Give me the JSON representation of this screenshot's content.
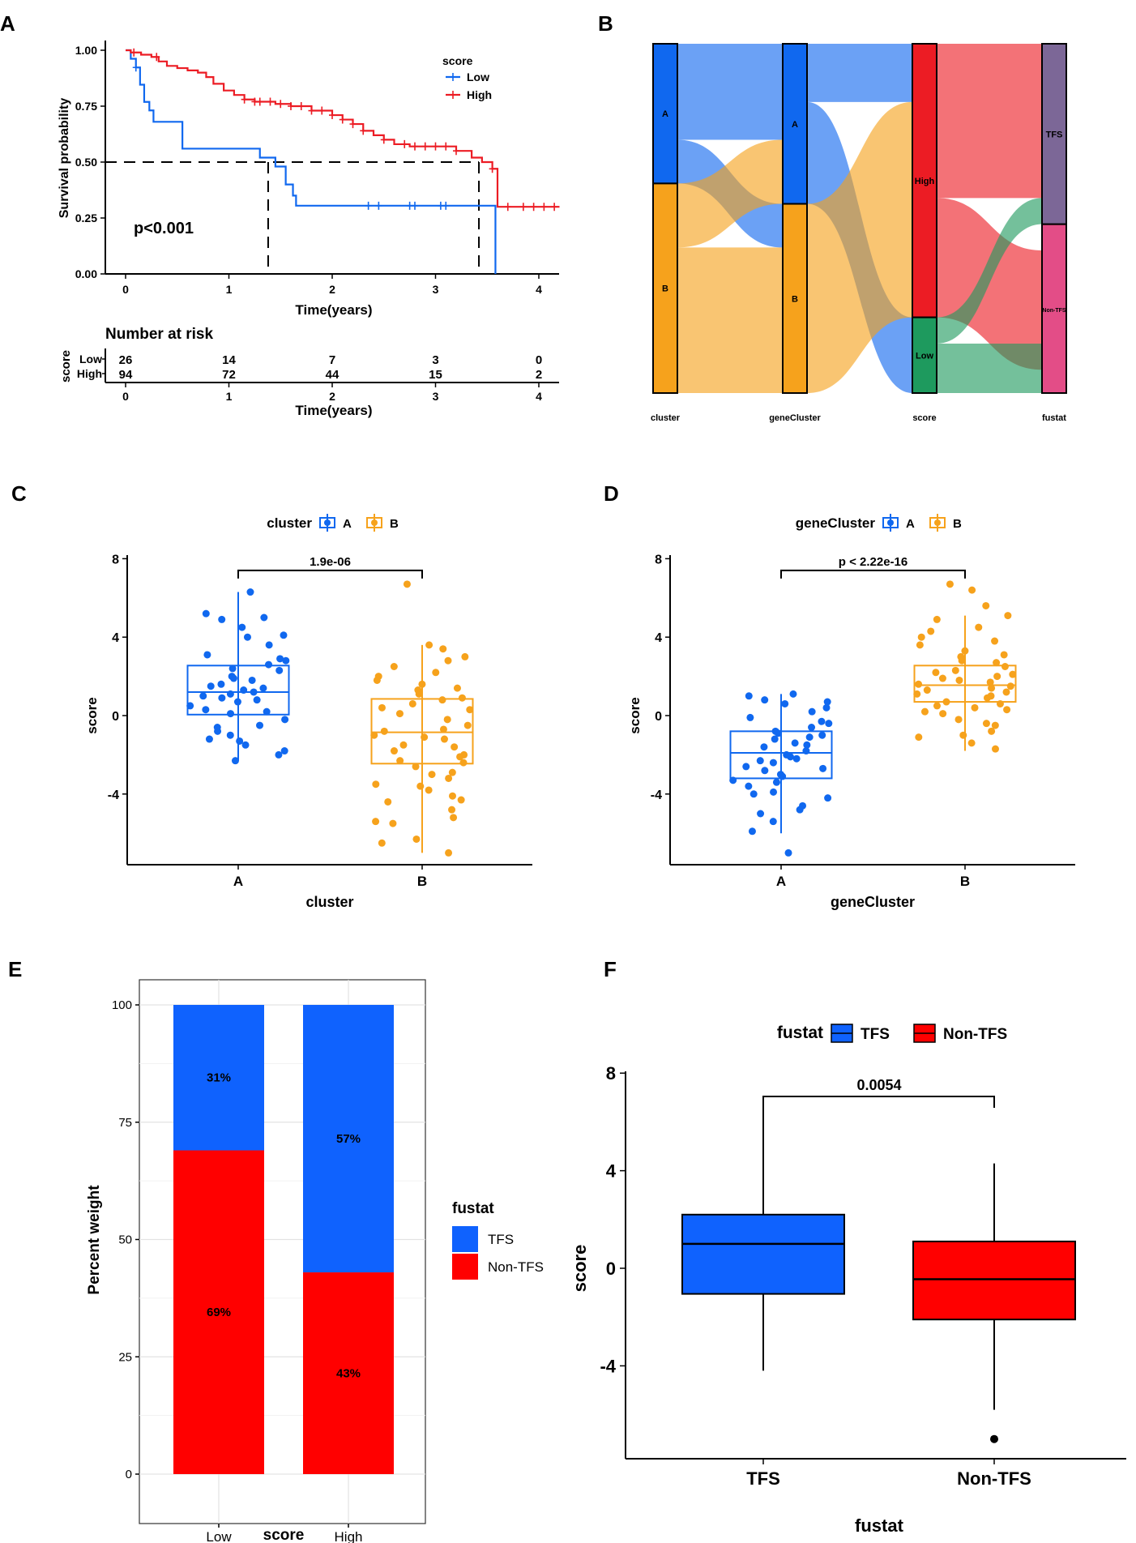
{
  "colors": {
    "blue": "#1068ef",
    "red": "#ec1c24",
    "orange": "#f6a21c",
    "green": "#1e9a5e",
    "purple": "#7c6797",
    "pink": "#e34d87",
    "fill_blue": "#0f62fe",
    "fill_red": "#ff0000",
    "lightblue": "#6aa4f7",
    "lightorange": "#fbc97a",
    "lightred": "#ff7b7b",
    "lightgreen": "#7cc9a0"
  },
  "panels": {
    "A": "A",
    "B": "B",
    "C": "C",
    "D": "D",
    "E": "E",
    "F": "F"
  },
  "chart_data": [
    {
      "id": "A",
      "type": "line",
      "ylabel": "Survival probability",
      "xlabel": "Time(years)",
      "xlim": [
        0,
        4.2
      ],
      "ylim": [
        0,
        1
      ],
      "xticks": [
        "0",
        "1",
        "2",
        "3",
        "4"
      ],
      "yticks": [
        "0.00",
        "0.25",
        "0.50",
        "0.75",
        "1.00"
      ],
      "legend_title": "score",
      "pvalue": "p<0.001",
      "series": [
        {
          "name": "Low",
          "color": "#1068ef",
          "steps": [
            [
              0,
              1
            ],
            [
              0.05,
              0.962
            ],
            [
              0.1,
              0.923
            ],
            [
              0.14,
              0.846
            ],
            [
              0.18,
              0.769
            ],
            [
              0.23,
              0.731
            ],
            [
              0.27,
              0.692
            ],
            [
              0.27,
              0.68
            ],
            [
              0.55,
              0.64
            ],
            [
              0.55,
              0.56
            ],
            [
              1.3,
              0.56
            ],
            [
              1.3,
              0.52
            ],
            [
              1.45,
              0.52
            ],
            [
              1.45,
              0.48
            ],
            [
              1.55,
              0.48
            ],
            [
              1.55,
              0.4
            ],
            [
              1.62,
              0.4
            ],
            [
              1.62,
              0.35
            ],
            [
              1.65,
              0.35
            ],
            [
              1.65,
              0.305
            ],
            [
              3.58,
              0.305
            ],
            [
              3.58,
              0
            ]
          ],
          "censor": [
            0.1,
            2.35,
            2.45,
            2.75,
            2.8,
            3.05,
            3.1
          ]
        },
        {
          "name": "High",
          "color": "#ec1c24",
          "steps": [
            [
              0,
              1
            ],
            [
              0.05,
              0.99
            ],
            [
              0.15,
              0.98
            ],
            [
              0.25,
              0.97
            ],
            [
              0.32,
              0.95
            ],
            [
              0.4,
              0.93
            ],
            [
              0.5,
              0.92
            ],
            [
              0.6,
              0.91
            ],
            [
              0.7,
              0.9
            ],
            [
              0.78,
              0.88
            ],
            [
              0.85,
              0.85
            ],
            [
              0.95,
              0.82
            ],
            [
              1.05,
              0.8
            ],
            [
              1.15,
              0.78
            ],
            [
              1.25,
              0.77
            ],
            [
              1.45,
              0.76
            ],
            [
              1.6,
              0.75
            ],
            [
              1.8,
              0.73
            ],
            [
              2.0,
              0.71
            ],
            [
              2.1,
              0.69
            ],
            [
              2.2,
              0.67
            ],
            [
              2.3,
              0.64
            ],
            [
              2.4,
              0.62
            ],
            [
              2.5,
              0.6
            ],
            [
              2.6,
              0.58
            ],
            [
              2.75,
              0.57
            ],
            [
              3.2,
              0.55
            ],
            [
              3.35,
              0.52
            ],
            [
              3.45,
              0.5
            ],
            [
              3.55,
              0.47
            ],
            [
              3.6,
              0.4
            ],
            [
              3.6,
              0.3
            ],
            [
              4.2,
              0.3
            ]
          ],
          "censor": [
            0.08,
            0.3,
            1.15,
            1.25,
            1.3,
            1.4,
            1.5,
            1.6,
            1.7,
            1.8,
            1.9,
            2.0,
            2.1,
            2.2,
            2.3,
            2.5,
            2.7,
            2.8,
            2.9,
            3.0,
            3.1,
            3.2,
            3.55,
            3.7,
            3.85,
            3.95,
            4.05,
            4.15
          ]
        }
      ],
      "medians": [
        1.38,
        3.42
      ],
      "risk_table": {
        "title": "Number at risk",
        "ylabel": "score",
        "xlabel": "Time(years)",
        "rows": [
          {
            "name": "Low",
            "values": [
              "26",
              "14",
              "7",
              "3",
              "0"
            ]
          },
          {
            "name": "High",
            "values": [
              "94",
              "72",
              "44",
              "15",
              "2"
            ]
          }
        ],
        "times": [
          "0",
          "1",
          "2",
          "3",
          "4"
        ]
      }
    },
    {
      "id": "B",
      "type": "sankey",
      "axes": [
        "cluster",
        "geneCluster",
        "score",
        "fustat"
      ],
      "stacks": [
        [
          {
            "label": "A",
            "value": 48
          },
          {
            "label": "B",
            "value": 72
          }
        ],
        [
          {
            "label": "A",
            "value": 55
          },
          {
            "label": "B",
            "value": 65
          }
        ],
        [
          {
            "label": "High",
            "value": 94
          },
          {
            "label": "Low",
            "value": 26
          }
        ],
        [
          {
            "label": "TFS",
            "value": 62
          },
          {
            "label": "Non-TFS",
            "value": 58
          }
        ]
      ]
    },
    {
      "id": "C",
      "type": "box",
      "xlabel": "cluster",
      "ylabel": "score",
      "legend_title": "cluster",
      "categories": [
        "A",
        "B"
      ],
      "ylim": [
        -7.5,
        8
      ],
      "yticks": [
        "-4",
        "0",
        "4",
        "8"
      ],
      "pvalue": "1.9e-06",
      "boxes": [
        {
          "q1": 0.05,
          "median": 1.2,
          "q3": 2.55,
          "low": -2.3,
          "high": 6.3
        },
        {
          "q1": -2.45,
          "median": -0.85,
          "q3": 0.85,
          "low": -7.0,
          "high": 3.6
        }
      ],
      "points": [
        [
          6.3,
          5.2,
          4.9,
          4.5,
          4.1,
          3.6,
          3.1,
          2.8,
          2.6,
          2.4,
          2.3,
          2.0,
          1.8,
          1.6,
          1.4,
          1.3,
          1.2,
          1.1,
          1.0,
          0.9,
          0.7,
          0.5,
          0.3,
          0.1,
          -0.2,
          -0.5,
          -0.8,
          -1.0,
          -1.2,
          -1.5,
          -1.8,
          -2.0,
          -2.3,
          5.0,
          4.0,
          2.9,
          1.9,
          1.5,
          0.8,
          0.2,
          -0.6,
          -1.3
        ],
        [
          6.7,
          3.6,
          3.4,
          3.0,
          2.5,
          2.2,
          2.0,
          1.8,
          1.6,
          1.3,
          1.1,
          0.9,
          0.6,
          0.3,
          0.1,
          -0.2,
          -0.5,
          -0.8,
          -1.0,
          -1.2,
          -1.5,
          -1.8,
          -2.0,
          -2.3,
          -2.6,
          -2.9,
          -3.2,
          -3.5,
          -3.8,
          -4.1,
          -4.4,
          -4.8,
          -5.2,
          -5.5,
          -6.3,
          -7.0,
          2.8,
          1.4,
          0.4,
          -0.7,
          -1.6,
          -2.4,
          -3.0,
          -3.6,
          -4.3,
          -5.4,
          -6.5,
          0.8,
          -1.1,
          -2.1
        ]
      ],
      "group_colors": [
        "#1068ef",
        "#f6a21c"
      ]
    },
    {
      "id": "D",
      "type": "box",
      "xlabel": "geneCluster",
      "ylabel": "score",
      "legend_title": "geneCluster",
      "categories": [
        "A",
        "B"
      ],
      "ylim": [
        -7.5,
        8
      ],
      "yticks": [
        "-4",
        "0",
        "4",
        "8"
      ],
      "pvalue": "p < 2.22e-16",
      "boxes": [
        {
          "q1": -3.2,
          "median": -1.9,
          "q3": -0.8,
          "low": -6.0,
          "high": 1.1
        },
        {
          "q1": 0.7,
          "median": 1.55,
          "q3": 2.55,
          "low": -1.8,
          "high": 5.1
        }
      ],
      "points": [
        [
          1.1,
          1.0,
          0.8,
          0.6,
          0.4,
          0.2,
          -0.1,
          -0.4,
          -0.6,
          -0.8,
          -1.0,
          -1.2,
          -1.4,
          -1.6,
          -1.8,
          -2.0,
          -2.2,
          -2.4,
          -2.6,
          -2.8,
          -3.0,
          -3.3,
          -3.6,
          -3.9,
          -4.2,
          -4.6,
          -5.0,
          -5.4,
          -5.9,
          -7.0,
          0.7,
          -0.3,
          -0.9,
          -1.5,
          -2.1,
          -2.7,
          -3.4,
          -4.0,
          -4.8,
          -1.1,
          -2.3,
          -3.1
        ],
        [
          6.7,
          6.4,
          5.6,
          5.1,
          4.9,
          4.5,
          4.0,
          3.6,
          3.3,
          3.0,
          2.8,
          2.5,
          2.3,
          2.1,
          1.9,
          1.7,
          1.5,
          1.3,
          1.1,
          0.9,
          0.7,
          0.5,
          0.3,
          0.1,
          -0.2,
          -0.5,
          -0.8,
          -1.1,
          -1.4,
          -1.7,
          4.3,
          3.8,
          2.7,
          2.2,
          1.8,
          1.4,
          1.0,
          0.6,
          0.2,
          -0.4,
          2.0,
          1.2,
          0.4,
          -1.0,
          3.1,
          1.6
        ]
      ],
      "group_colors": [
        "#1068ef",
        "#f6a21c"
      ]
    },
    {
      "id": "E",
      "type": "bar",
      "stacked": true,
      "xlabel": "score",
      "ylabel": "Percent weight",
      "categories": [
        "Low",
        "High"
      ],
      "ylim": [
        0,
        100
      ],
      "yticks": [
        "0",
        "25",
        "50",
        "75",
        "100"
      ],
      "legend_title": "fustat",
      "series": [
        {
          "name": "TFS",
          "values": [
            31,
            57
          ],
          "labels": [
            "31%",
            "57%"
          ]
        },
        {
          "name": "Non-TFS",
          "values": [
            69,
            43
          ],
          "labels": [
            "69%",
            "43%"
          ]
        }
      ]
    },
    {
      "id": "F",
      "type": "box",
      "xlabel": "fustat",
      "ylabel": "score",
      "legend_title": "fustat",
      "categories": [
        "TFS",
        "Non-TFS"
      ],
      "ylim": [
        -7.5,
        8
      ],
      "yticks": [
        "-4",
        "0",
        "4",
        "8"
      ],
      "pvalue": "0.0054",
      "boxes": [
        {
          "q1": -1.05,
          "median": 1.0,
          "q3": 2.2,
          "low": -4.2,
          "high": 6.7
        },
        {
          "q1": -2.1,
          "median": -0.45,
          "q3": 1.1,
          "low": -5.8,
          "high": 4.3
        }
      ],
      "outliers": [
        [],
        [
          -7.0
        ]
      ]
    }
  ]
}
